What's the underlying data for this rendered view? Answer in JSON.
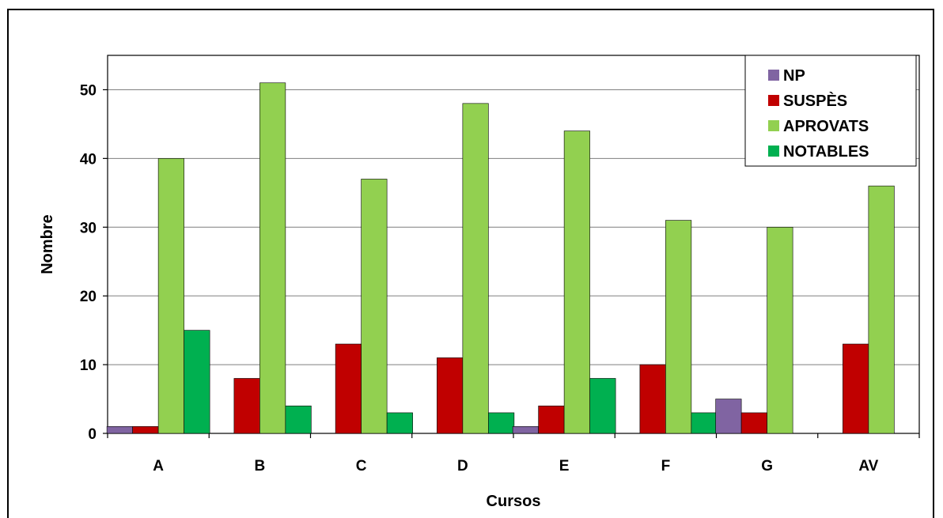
{
  "chart_data": {
    "type": "bar",
    "title": "",
    "xlabel": "Cursos",
    "ylabel": "Nombre",
    "categories": [
      "A",
      "B",
      "C",
      "D",
      "E",
      "F",
      "G",
      "AV"
    ],
    "ylim": [
      0,
      55
    ],
    "yticks": [
      0,
      10,
      20,
      30,
      40,
      50
    ],
    "grid": true,
    "legend_position": "top-right",
    "series": [
      {
        "name": "NP",
        "color": "#8064a2",
        "values": [
          1,
          0,
          0,
          0,
          1,
          0,
          5,
          0
        ]
      },
      {
        "name": "SUSPÈS",
        "color": "#c00000",
        "values": [
          1,
          8,
          13,
          11,
          4,
          10,
          3,
          13
        ]
      },
      {
        "name": "APROVATS",
        "color": "#92d050",
        "values": [
          40,
          51,
          37,
          48,
          44,
          31,
          30,
          36
        ]
      },
      {
        "name": "NOTABLES",
        "color": "#00b050",
        "values": [
          15,
          4,
          3,
          3,
          8,
          3,
          0,
          0
        ]
      }
    ]
  }
}
